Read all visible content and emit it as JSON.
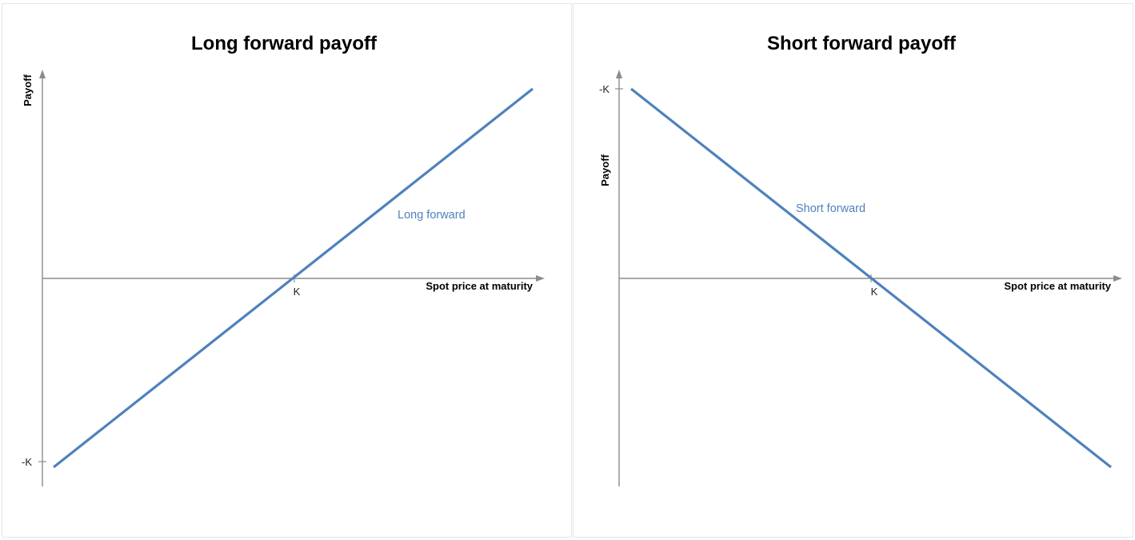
{
  "colors": {
    "series": "#4f81bd",
    "axis": "#8c8c8c"
  },
  "chart_data": [
    {
      "type": "line",
      "title": "Long forward payoff",
      "xlabel": "Spot price at maturity",
      "ylabel": "Payoff",
      "x_ticks": [
        "K"
      ],
      "y_ticks": [
        "-K"
      ],
      "grid": false,
      "series": [
        {
          "name": "Long forward",
          "points": [
            [
              "0",
              "-K"
            ],
            [
              "K",
              "0"
            ],
            [
              "2K",
              "K"
            ]
          ]
        }
      ]
    },
    {
      "type": "line",
      "title": "Short forward payoff",
      "xlabel": "Spot price at maturity",
      "ylabel": "Payoff",
      "x_ticks": [
        "K"
      ],
      "y_ticks": [
        "-K"
      ],
      "grid": false,
      "series": [
        {
          "name": "Short forward",
          "points": [
            [
              "0",
              "K"
            ],
            [
              "K",
              "0"
            ],
            [
              "2K",
              "-K"
            ]
          ]
        }
      ]
    }
  ]
}
